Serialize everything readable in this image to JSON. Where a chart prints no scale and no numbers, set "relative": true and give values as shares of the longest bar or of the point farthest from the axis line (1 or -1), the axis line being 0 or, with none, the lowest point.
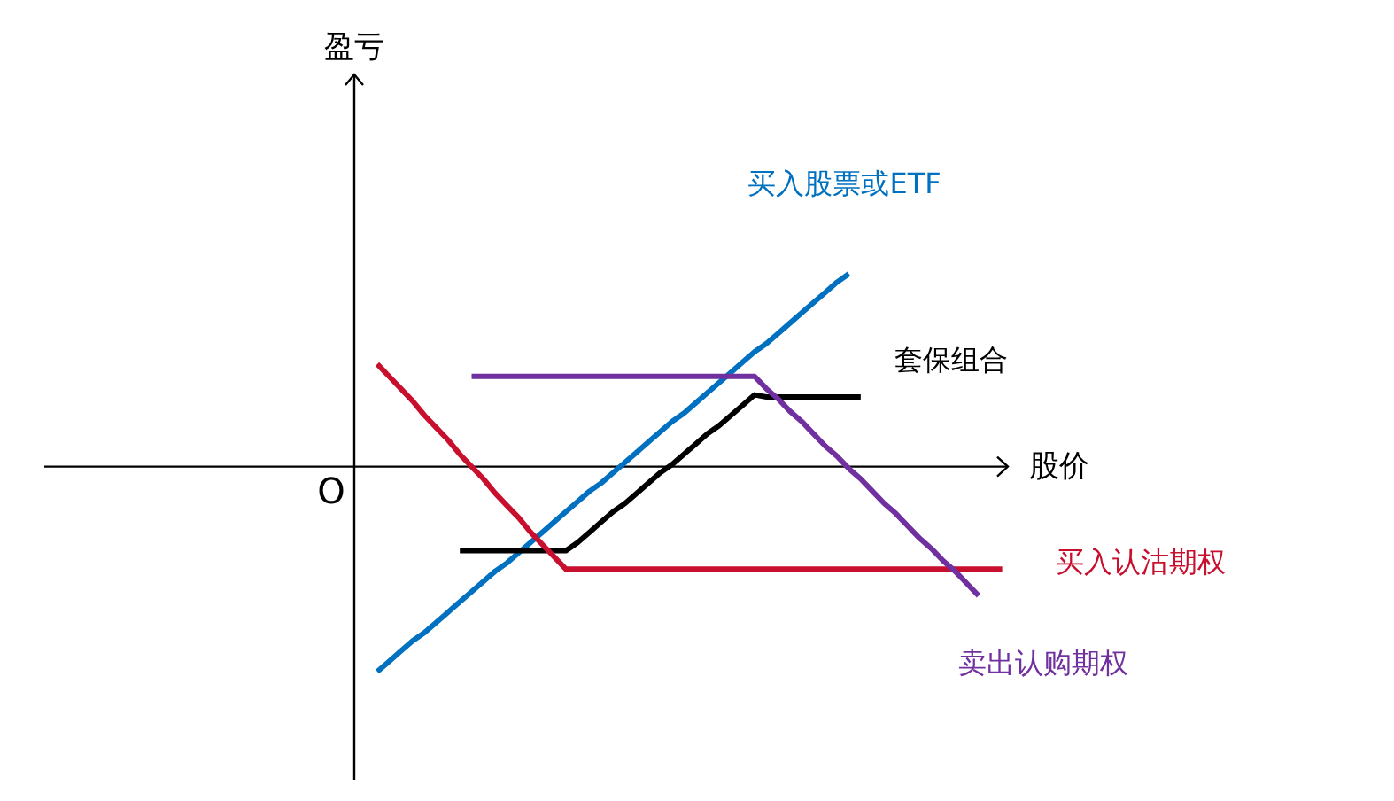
{
  "chart_data": {
    "type": "line",
    "relative": true,
    "xlabel": "股价",
    "annotations": [
      "盈亏",
      "O"
    ],
    "categories": [
      null,
      null,
      null,
      null,
      null,
      null,
      null,
      null,
      null,
      null,
      null,
      null,
      null,
      null,
      null,
      null,
      null,
      null,
      null,
      null,
      null,
      null,
      null,
      null,
      null,
      null,
      null,
      null,
      null,
      null,
      null,
      null,
      null,
      null,
      null,
      null,
      null,
      null,
      null,
      null,
      null,
      null,
      null,
      null,
      null,
      null,
      null,
      null,
      null,
      null,
      null,
      null,
      null,
      null
    ],
    "series": [
      {
        "name": "买入股票或ETF",
        "color": "#0070c0",
        "values": [
          -1,
          -0.95,
          -0.9,
          -0.85,
          -0.81,
          -0.76,
          -0.71,
          -0.66,
          -0.61,
          -0.56,
          -0.51,
          -0.47,
          -0.42,
          -0.37,
          -0.32,
          -0.27,
          -0.22,
          -0.17,
          -0.12,
          -0.08,
          -0.03,
          0.02,
          0.07,
          0.12,
          0.17,
          0.22,
          0.26,
          0.31,
          0.36,
          0.41,
          0.46,
          0.51,
          0.56,
          0.6,
          0.65,
          0.7,
          0.75,
          0.8,
          0.85,
          0.9,
          0.94,
          null,
          null,
          null,
          null,
          null,
          null,
          null,
          null,
          null,
          null,
          null,
          null,
          null
        ]
      },
      {
        "name": "套保组合",
        "color": "#000000",
        "values": [
          null,
          null,
          null,
          null,
          null,
          null,
          null,
          -0.41,
          -0.41,
          -0.41,
          -0.41,
          -0.41,
          -0.41,
          -0.41,
          -0.41,
          -0.41,
          -0.41,
          -0.37,
          -0.32,
          -0.27,
          -0.22,
          -0.18,
          -0.13,
          -0.08,
          -0.03,
          0.01,
          0.06,
          0.11,
          0.16,
          0.2,
          0.25,
          0.3,
          0.35,
          0.34,
          0.34,
          0.34,
          0.34,
          0.34,
          0.34,
          0.34,
          0.34,
          0.34,
          null,
          null,
          null,
          null,
          null,
          null,
          null,
          null,
          null,
          null,
          null,
          null
        ]
      },
      {
        "name": "买入认沽期权",
        "color": "#c8102e",
        "values": [
          0.5,
          0.44,
          0.38,
          0.32,
          0.25,
          0.19,
          0.13,
          0.06,
          0,
          -0.06,
          -0.13,
          -0.19,
          -0.25,
          -0.32,
          -0.38,
          -0.44,
          -0.5,
          -0.5,
          -0.5,
          -0.5,
          -0.5,
          -0.5,
          -0.5,
          -0.5,
          -0.5,
          -0.5,
          -0.5,
          -0.5,
          -0.5,
          -0.5,
          -0.5,
          -0.5,
          -0.5,
          -0.5,
          -0.5,
          -0.5,
          -0.5,
          -0.5,
          -0.5,
          -0.5,
          -0.5,
          -0.5,
          -0.5,
          -0.5,
          -0.5,
          -0.5,
          -0.5,
          -0.5,
          -0.5,
          -0.5,
          -0.5,
          -0.5,
          -0.5,
          -0.5
        ]
      },
      {
        "name": "卖出认购期权",
        "color": "#7030a0",
        "values": [
          null,
          null,
          null,
          null,
          null,
          null,
          null,
          null,
          0.44,
          0.44,
          0.44,
          0.44,
          0.44,
          0.44,
          0.44,
          0.44,
          0.44,
          0.44,
          0.44,
          0.44,
          0.44,
          0.44,
          0.44,
          0.44,
          0.44,
          0.44,
          0.44,
          0.44,
          0.44,
          0.44,
          0.44,
          0.44,
          0.44,
          0.38,
          0.33,
          0.27,
          0.22,
          0.16,
          0.1,
          0.05,
          -0.01,
          -0.06,
          -0.12,
          -0.18,
          -0.23,
          -0.29,
          -0.35,
          -0.4,
          -0.46,
          -0.51,
          -0.57,
          -0.63,
          null,
          null
        ]
      }
    ]
  }
}
